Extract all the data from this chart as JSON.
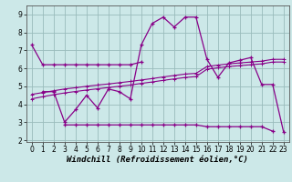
{
  "x": [
    0,
    1,
    2,
    3,
    4,
    5,
    6,
    7,
    8,
    9,
    10,
    11,
    12,
    13,
    14,
    15,
    16,
    17,
    18,
    19,
    20,
    21,
    22,
    23
  ],
  "line_upper_flat": [
    7.3,
    6.2,
    6.2,
    6.2,
    6.2,
    6.2,
    6.2,
    6.2,
    6.2,
    6.2,
    6.35,
    null,
    null,
    null,
    null,
    null,
    null,
    null,
    null,
    null,
    null,
    null,
    null,
    null
  ],
  "line_lower_flat": [
    null,
    null,
    null,
    2.85,
    2.85,
    2.85,
    2.85,
    2.85,
    2.85,
    2.85,
    2.85,
    2.85,
    2.85,
    2.85,
    2.85,
    2.85,
    2.75,
    2.75,
    2.75,
    2.75,
    2.75,
    2.75,
    2.5,
    null
  ],
  "line_wiggly": [
    null,
    4.7,
    4.7,
    3.0,
    3.7,
    4.5,
    3.8,
    4.85,
    4.7,
    4.3,
    7.3,
    8.5,
    8.85,
    8.3,
    8.85,
    8.85,
    6.5,
    5.5,
    6.3,
    6.45,
    6.6,
    5.1,
    5.1,
    2.45
  ],
  "line_rise_upper": [
    4.55,
    4.65,
    4.75,
    4.85,
    4.92,
    5.0,
    5.07,
    5.13,
    5.2,
    5.27,
    5.35,
    5.43,
    5.52,
    5.6,
    5.68,
    5.72,
    6.1,
    6.18,
    6.25,
    6.3,
    6.35,
    6.4,
    6.5,
    6.5
  ],
  "line_rise_lower": [
    4.3,
    4.42,
    4.53,
    4.63,
    4.71,
    4.79,
    4.86,
    4.93,
    5.0,
    5.07,
    5.16,
    5.24,
    5.33,
    5.41,
    5.49,
    5.54,
    5.95,
    6.03,
    6.1,
    6.15,
    6.2,
    6.25,
    6.35,
    6.35
  ],
  "color": "#880088",
  "bg_color": "#cce8e8",
  "grid_color": "#99bbbb",
  "xlim": [
    -0.5,
    23.5
  ],
  "ylim": [
    1.9,
    9.5
  ],
  "yticks": [
    2,
    3,
    4,
    5,
    6,
    7,
    8,
    9
  ],
  "xticks": [
    0,
    1,
    2,
    3,
    4,
    5,
    6,
    7,
    8,
    9,
    10,
    11,
    12,
    13,
    14,
    15,
    16,
    17,
    18,
    19,
    20,
    21,
    22,
    23
  ],
  "xlabel": "Windchill (Refroidissement éolien,°C)",
  "tick_fontsize": 5.5,
  "label_fontsize": 6.5
}
